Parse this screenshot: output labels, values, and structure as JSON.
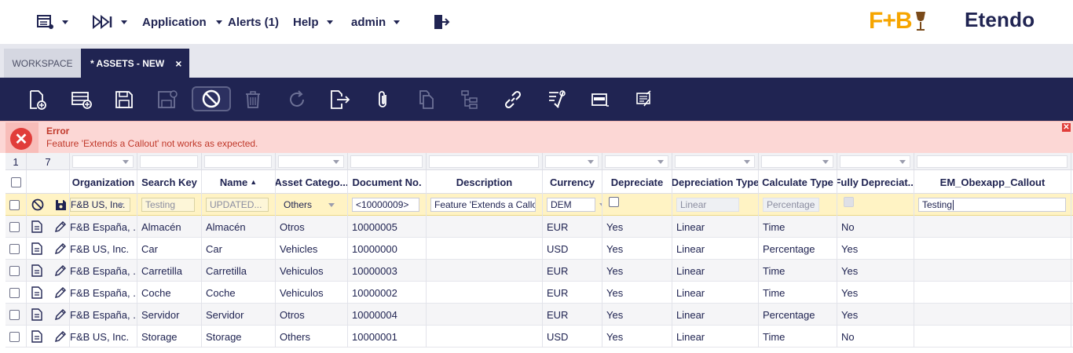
{
  "topbar": {
    "app_menu": "Application",
    "alerts": "Alerts (1)",
    "help": "Help",
    "user": "admin",
    "logo_brand": "F+B",
    "logo_name": "Etendo"
  },
  "tabs": {
    "workspace": "WORKSPACE",
    "active": "* ASSETS - NEW",
    "close": "×"
  },
  "error": {
    "title": "Error",
    "message": "Feature 'Extends a Callout' not works as expected."
  },
  "grid": {
    "counts": {
      "selected": "1",
      "total": "7"
    },
    "headers": [
      "Organization",
      "Search Key",
      "Name",
      "Asset Catego...",
      "Document No.",
      "Description",
      "Currency",
      "Depreciate",
      "Depreciation Type",
      "Calculate Type",
      "Fully Depreciat...",
      "EM_Obexapp_Callout"
    ],
    "sort_indicator": "▲",
    "edit_row": {
      "organization": "F&B US, Inc.",
      "search_key": "Testing",
      "name": "UPDATED...",
      "asset_category": "Others",
      "document_no": "<10000009>",
      "description": "Feature 'Extends a Callout'",
      "currency": "DEM",
      "depreciation_type": "Linear",
      "calculate_type": "Percentage",
      "callout": "Testing"
    },
    "rows": [
      {
        "organization": "F&B España, ...",
        "search_key": "Almacén",
        "name": "Almacén",
        "asset_category": "Otros",
        "document_no": "10000005",
        "description": "",
        "currency": "EUR",
        "depreciate": "Yes",
        "depreciation_type": "Linear",
        "calculate_type": "Time",
        "fully_depreciated": "No",
        "callout": ""
      },
      {
        "organization": "F&B US, Inc.",
        "search_key": "Car",
        "name": "Car",
        "asset_category": "Vehicles",
        "document_no": "10000000",
        "description": "",
        "currency": "USD",
        "depreciate": "Yes",
        "depreciation_type": "Linear",
        "calculate_type": "Percentage",
        "fully_depreciated": "Yes",
        "callout": ""
      },
      {
        "organization": "F&B España, ...",
        "search_key": "Carretilla",
        "name": "Carretilla",
        "asset_category": "Vehiculos",
        "document_no": "10000003",
        "description": "",
        "currency": "EUR",
        "depreciate": "Yes",
        "depreciation_type": "Linear",
        "calculate_type": "Time",
        "fully_depreciated": "Yes",
        "callout": ""
      },
      {
        "organization": "F&B España, ...",
        "search_key": "Coche",
        "name": "Coche",
        "asset_category": "Vehiculos",
        "document_no": "10000002",
        "description": "",
        "currency": "EUR",
        "depreciate": "Yes",
        "depreciation_type": "Linear",
        "calculate_type": "Time",
        "fully_depreciated": "Yes",
        "callout": ""
      },
      {
        "organization": "F&B España, ...",
        "search_key": "Servidor",
        "name": "Servidor",
        "asset_category": "Otros",
        "document_no": "10000004",
        "description": "",
        "currency": "EUR",
        "depreciate": "Yes",
        "depreciation_type": "Linear",
        "calculate_type": "Percentage",
        "fully_depreciated": "Yes",
        "callout": ""
      },
      {
        "organization": "F&B US, Inc.",
        "search_key": "Storage",
        "name": "Storage",
        "asset_category": "Others",
        "document_no": "10000001",
        "description": "",
        "currency": "USD",
        "depreciate": "Yes",
        "depreciation_type": "Linear",
        "calculate_type": "Time",
        "fully_depreciated": "No",
        "callout": ""
      }
    ]
  },
  "colors": {
    "navy": "#202452",
    "brand_orange": "#f6a500",
    "error_bg": "#fcd7d5",
    "edit_row_bg": "#fff3c4"
  }
}
